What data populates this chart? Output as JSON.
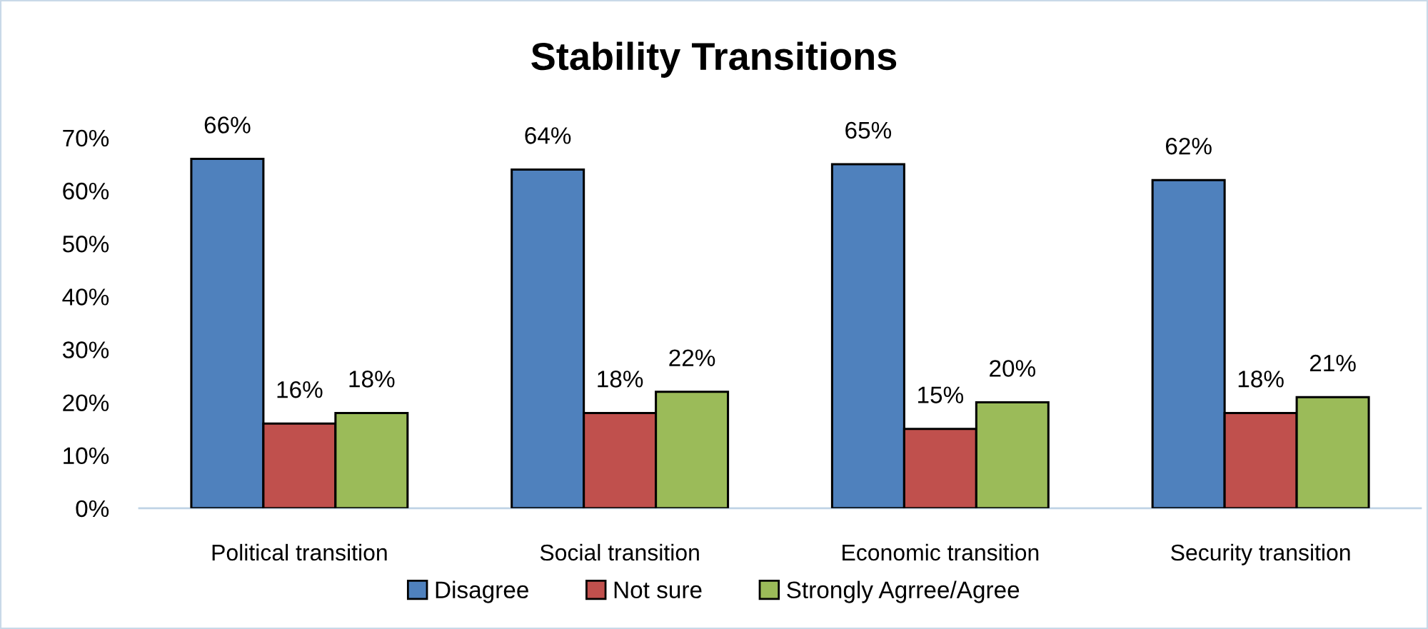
{
  "chart_data": {
    "type": "bar",
    "title": "Stability Transitions",
    "categories": [
      "Political transition",
      "Social transition",
      "Economic transition",
      "Security transition"
    ],
    "series": [
      {
        "name": "Disagree",
        "color": "#4f81bd",
        "values": [
          66,
          64,
          65,
          62
        ],
        "value_labels": [
          "66%",
          "64%",
          "65%",
          "62%"
        ]
      },
      {
        "name": "Not sure",
        "color": "#c0504d",
        "values": [
          16,
          18,
          15,
          18
        ],
        "value_labels": [
          "16%",
          "18%",
          "15%",
          "18%"
        ]
      },
      {
        "name": "Strongly Agrree/Agree",
        "color": "#9bbb59",
        "values": [
          18,
          22,
          20,
          21
        ],
        "value_labels": [
          "18%",
          "22%",
          "20%",
          "21%"
        ]
      }
    ],
    "ylim": [
      0,
      70
    ],
    "yticks": [
      {
        "value": 0,
        "label": "0%"
      },
      {
        "value": 10,
        "label": "10%"
      },
      {
        "value": 20,
        "label": "20%"
      },
      {
        "value": 30,
        "label": "30%"
      },
      {
        "value": 40,
        "label": "40%"
      },
      {
        "value": 50,
        "label": "50%"
      },
      {
        "value": 60,
        "label": "60%"
      },
      {
        "value": 70,
        "label": "70%"
      }
    ],
    "grid": false,
    "legend": "bottom"
  }
}
